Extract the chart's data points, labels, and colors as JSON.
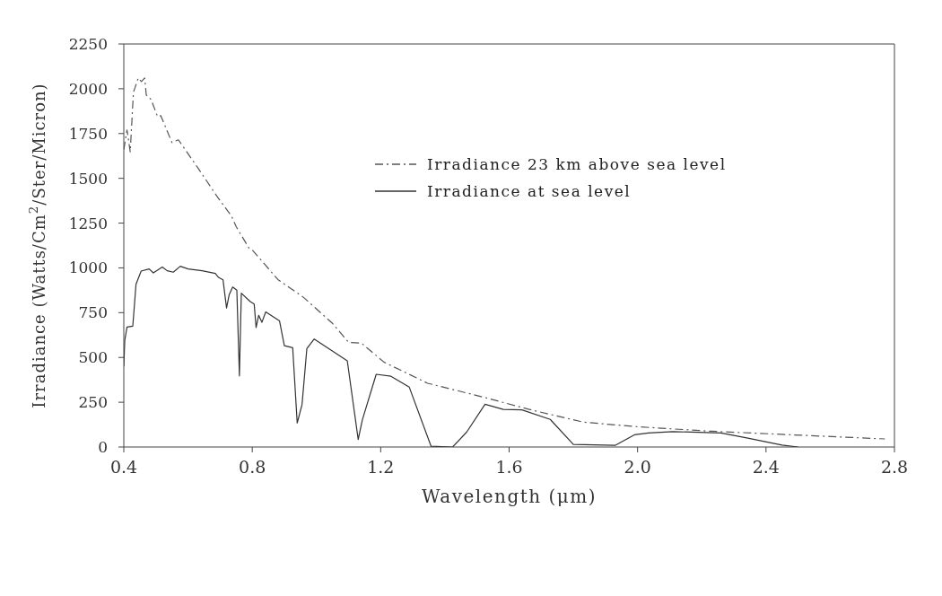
{
  "chart_data": {
    "type": "line",
    "xlabel": "Wavelength (μm)",
    "ylabel": "Irradiance (Watts/Cm$^{2}$/Ster/Micron)",
    "xlim": [
      0.4,
      2.8
    ],
    "xticks": [
      0.4,
      0.8,
      1.2,
      1.6,
      {
        "value": 2,
        "label": "2.0"
      },
      2.4,
      2.8
    ],
    "ylim": [
      0,
      2250
    ],
    "yticks": [
      0,
      250,
      500,
      750,
      1000,
      1250,
      1500,
      1750,
      2000,
      2250
    ],
    "legend": "top right",
    "marker": "none",
    "series": [
      {
        "name": "Irradiance 23 km above sea level",
        "color": "#555555",
        "line_style": "dashed",
        "x": [
          0.4,
          0.41,
          0.42,
          0.43,
          0.445,
          0.455,
          0.465,
          0.47,
          0.485,
          0.505,
          0.515,
          0.55,
          0.57,
          0.63,
          0.69,
          0.735,
          0.75,
          0.79,
          0.8,
          0.88,
          0.96,
          1.05,
          1.1,
          1.14,
          1.21,
          1.346,
          1.525,
          1.66,
          1.83,
          2.0,
          2.23,
          2.77
        ],
        "values": [
          1660,
          1770,
          1648,
          1980,
          2060,
          2040,
          2060,
          1965,
          1940,
          1845,
          1850,
          1700,
          1715,
          1560,
          1400,
          1290,
          1230,
          1110,
          1100,
          935,
          835,
          690,
          584,
          580,
          474,
          356,
          276,
          211,
          139,
          113,
          88,
          45
        ]
      },
      {
        "name": "Irradiance at sea level",
        "color": "#333333",
        "line_style": "solid",
        "x": [
          0.4,
          0.403,
          0.41,
          0.428,
          0.438,
          0.454,
          0.479,
          0.492,
          0.52,
          0.535,
          0.554,
          0.576,
          0.6,
          0.644,
          0.685,
          0.695,
          0.709,
          0.72,
          0.728,
          0.739,
          0.752,
          0.76,
          0.766,
          0.793,
          0.806,
          0.812,
          0.82,
          0.83,
          0.842,
          0.885,
          0.9,
          0.926,
          0.94,
          0.955,
          0.97,
          0.993,
          1.096,
          1.13,
          1.143,
          1.186,
          1.232,
          1.289,
          1.357,
          1.424,
          1.468,
          1.525,
          1.582,
          1.64,
          1.728,
          1.8,
          1.93,
          1.99,
          2.034,
          2.11,
          2.26,
          2.34,
          2.45,
          2.5
        ],
        "values": [
          450,
          595,
          670,
          675,
          908,
          982,
          994,
          972,
          1005,
          984,
          976,
          1009,
          994,
          984,
          969,
          947,
          933,
          776,
          849,
          893,
          876,
          397,
          859,
          813,
          798,
          667,
          735,
          696,
          754,
          704,
          566,
          554,
          134,
          236,
          549,
          603,
          481,
          42,
          152,
          406,
          395,
          334,
          4,
          0,
          84,
          239,
          210,
          207,
          154,
          14,
          9,
          68,
          78,
          86,
          78,
          51,
          11,
          0
        ]
      }
    ]
  }
}
